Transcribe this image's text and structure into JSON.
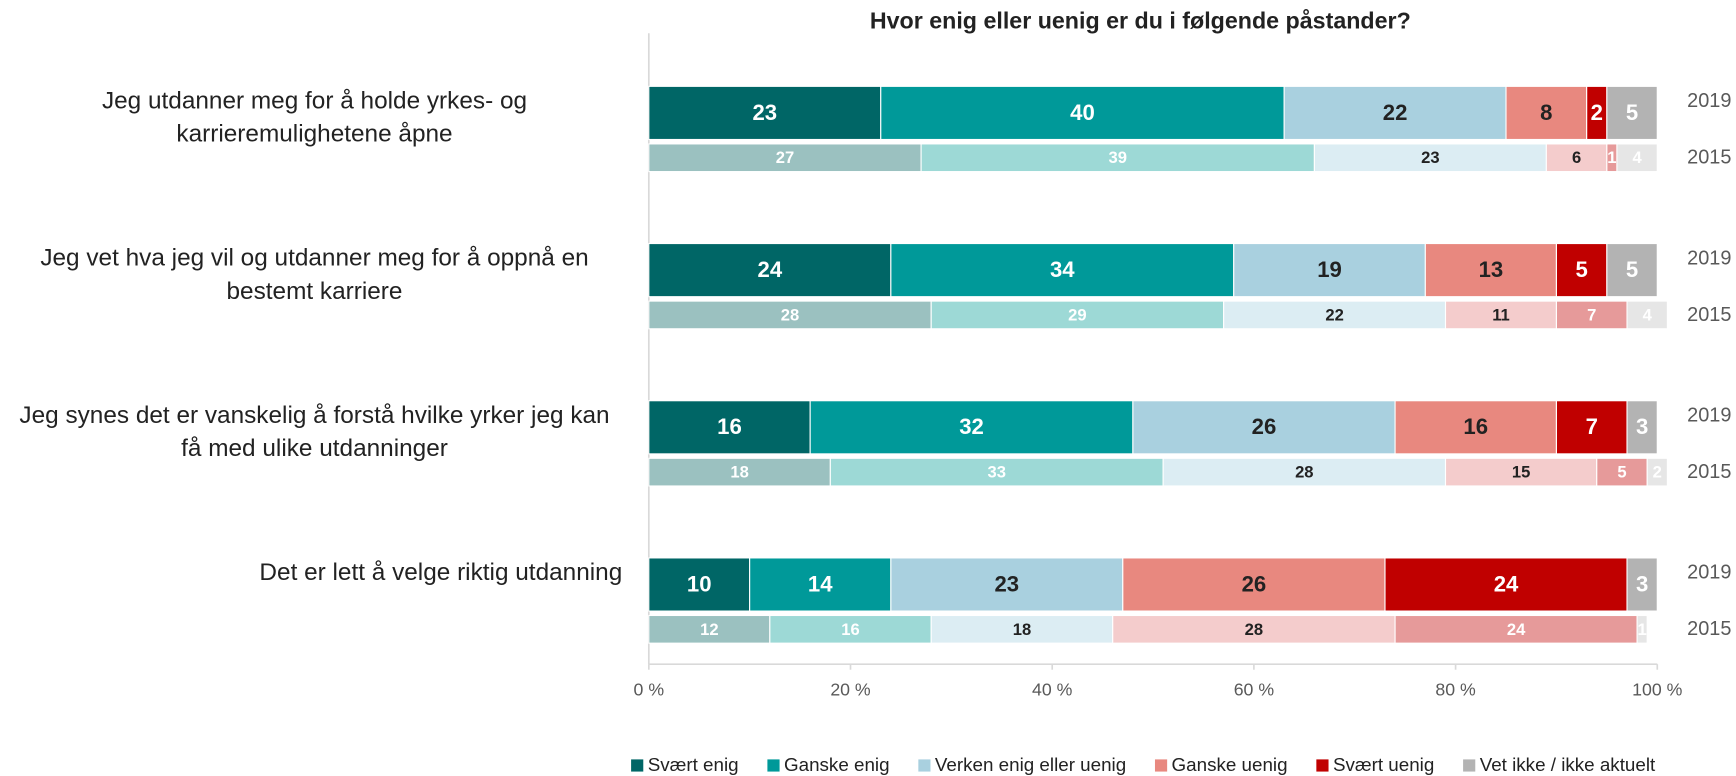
{
  "chart_data": {
    "type": "stacked-bar-horizontal",
    "title": "Hvor enig eller uenig er du i følgende påstander?",
    "categories": [
      "Jeg utdanner meg for å holde yrkes- og karrieremulighetene åpne",
      "Jeg vet hva jeg vil og utdanner meg for å oppnå en bestemt karriere",
      "Jeg synes det er vanskelig å forstå hvilke yrker jeg kan få med ulike utdanninger",
      "Det er lett å velge riktig utdanning"
    ],
    "bar_labels": [
      "2019",
      "2015"
    ],
    "series": [
      {
        "name": "Svært enig",
        "color": "#006666",
        "light_color": "#9bc1c0",
        "text_color": "#ffffff",
        "light_text_color": "#ffffff",
        "values": [
          [
            23,
            27
          ],
          [
            24,
            28
          ],
          [
            16,
            18
          ],
          [
            10,
            12
          ]
        ]
      },
      {
        "name": "Ganske enig",
        "color": "#009999",
        "light_color": "#9dd9d6",
        "text_color": "#ffffff",
        "light_text_color": "#ffffff",
        "values": [
          [
            40,
            39
          ],
          [
            34,
            29
          ],
          [
            32,
            33
          ],
          [
            14,
            16
          ]
        ]
      },
      {
        "name": "Verken enig eller uenig",
        "color": "#a9d0df",
        "light_color": "#dcedf3",
        "text_color": "#222222",
        "light_text_color": "#222222",
        "values": [
          [
            22,
            23
          ],
          [
            19,
            22
          ],
          [
            26,
            28
          ],
          [
            23,
            18
          ]
        ]
      },
      {
        "name": "Ganske uenig",
        "color": "#e8887f",
        "light_color": "#f4cccc",
        "text_color": "#222222",
        "light_text_color": "#222222",
        "values": [
          [
            8,
            6
          ],
          [
            13,
            11
          ],
          [
            16,
            15
          ],
          [
            26,
            28
          ]
        ]
      },
      {
        "name": "Svært uenig",
        "color": "#c00000",
        "light_color": "#e69a9a",
        "text_color": "#ffffff",
        "light_text_color": "#ffffff",
        "values": [
          [
            2,
            1
          ],
          [
            5,
            7
          ],
          [
            7,
            5
          ],
          [
            24,
            24
          ]
        ]
      },
      {
        "name": "Vet ikke / ikke aktuelt",
        "color": "#b3b3b3",
        "light_color": "#e6e6e6",
        "text_color": "#ffffff",
        "light_text_color": "#ffffff",
        "values": [
          [
            5,
            4
          ],
          [
            5,
            4
          ],
          [
            3,
            2
          ],
          [
            3,
            1
          ]
        ]
      }
    ],
    "xlim": [
      0,
      100
    ],
    "xticks": [
      {
        "value": 0,
        "label": "0 %"
      },
      {
        "value": 20,
        "label": "20 %"
      },
      {
        "value": 40,
        "label": "40 %"
      },
      {
        "value": 60,
        "label": "60 %"
      },
      {
        "value": 80,
        "label": "80 %"
      },
      {
        "value": 100,
        "label": "100 %"
      }
    ],
    "legend": "bottom"
  }
}
